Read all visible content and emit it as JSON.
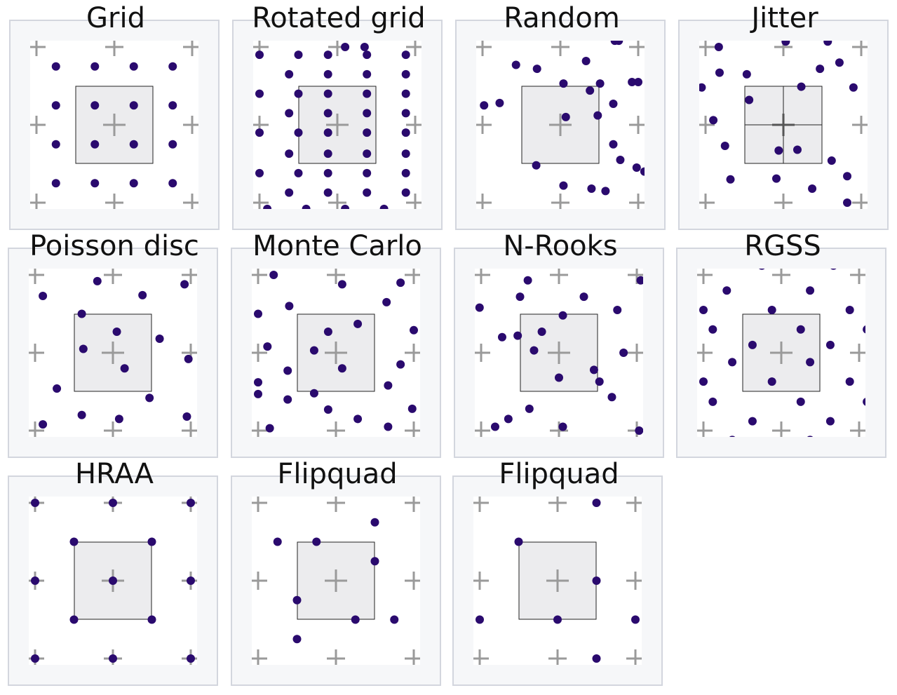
{
  "colors": {
    "sample": "#2a0a6e",
    "cross": "#9a9a9a",
    "pixel_fill": "#ececee",
    "pixel_stroke": "#222222"
  },
  "panels": [
    {
      "title": "Grid",
      "pixel_subdivided": false,
      "samples": [
        [
          -0.75,
          -0.75
        ],
        [
          -0.25,
          -0.75
        ],
        [
          0.25,
          -0.75
        ],
        [
          0.75,
          -0.75
        ],
        [
          -0.75,
          -0.25
        ],
        [
          -0.25,
          -0.25
        ],
        [
          0.25,
          -0.25
        ],
        [
          0.75,
          -0.25
        ],
        [
          -0.75,
          0.25
        ],
        [
          -0.25,
          0.25
        ],
        [
          0.25,
          0.25
        ],
        [
          0.75,
          0.25
        ],
        [
          -0.75,
          0.75
        ],
        [
          -0.25,
          0.75
        ],
        [
          0.25,
          0.75
        ],
        [
          0.75,
          0.75
        ]
      ]
    },
    {
      "title": "Rotated grid",
      "pixel_subdivided": false,
      "samples": [
        [
          0.1,
          -1.0
        ],
        [
          0.35,
          -1.0
        ],
        [
          -1.0,
          -0.9
        ],
        [
          -0.5,
          -0.9
        ],
        [
          -0.12,
          -0.9
        ],
        [
          0.38,
          -0.9
        ],
        [
          0.88,
          -0.9
        ],
        [
          -0.62,
          -0.65
        ],
        [
          -0.12,
          -0.65
        ],
        [
          0.38,
          -0.65
        ],
        [
          0.88,
          -0.65
        ],
        [
          -1.0,
          -0.4
        ],
        [
          -0.5,
          -0.4
        ],
        [
          -0.12,
          -0.4
        ],
        [
          0.38,
          -0.4
        ],
        [
          0.88,
          -0.4
        ],
        [
          -0.62,
          -0.15
        ],
        [
          -0.12,
          -0.15
        ],
        [
          0.38,
          -0.15
        ],
        [
          0.88,
          -0.15
        ],
        [
          -1.0,
          0.1
        ],
        [
          -0.5,
          0.1
        ],
        [
          -0.12,
          0.1
        ],
        [
          0.38,
          0.1
        ],
        [
          0.88,
          0.1
        ],
        [
          -0.62,
          0.37
        ],
        [
          -0.12,
          0.37
        ],
        [
          0.38,
          0.37
        ],
        [
          0.88,
          0.37
        ],
        [
          -1.0,
          0.62
        ],
        [
          -0.5,
          0.62
        ],
        [
          -0.12,
          0.62
        ],
        [
          0.38,
          0.62
        ],
        [
          0.88,
          0.62
        ],
        [
          -0.62,
          0.87
        ],
        [
          -0.12,
          0.87
        ],
        [
          0.38,
          0.87
        ],
        [
          0.88,
          0.87
        ],
        [
          -0.9,
          1.08
        ],
        [
          -0.4,
          1.08
        ],
        [
          0.1,
          1.08
        ],
        [
          0.6,
          1.08
        ]
      ]
    },
    {
      "title": "Random",
      "pixel_subdivided": false,
      "samples": [
        [
          0.7,
          -1.08
        ],
        [
          0.75,
          -1.08
        ],
        [
          -0.57,
          -0.77
        ],
        [
          -0.3,
          -0.72
        ],
        [
          0.33,
          -0.82
        ],
        [
          0.04,
          -0.53
        ],
        [
          0.51,
          -0.53
        ],
        [
          0.38,
          -0.44
        ],
        [
          0.92,
          -0.55
        ],
        [
          1.0,
          -0.55
        ],
        [
          -0.98,
          -0.25
        ],
        [
          -0.78,
          -0.28
        ],
        [
          0.68,
          -0.27
        ],
        [
          0.07,
          -0.1
        ],
        [
          0.48,
          -0.12
        ],
        [
          0.68,
          0.25
        ],
        [
          0.77,
          0.45
        ],
        [
          0.98,
          0.55
        ],
        [
          1.08,
          0.6
        ],
        [
          -0.31,
          0.52
        ],
        [
          0.04,
          0.78
        ],
        [
          0.4,
          0.82
        ],
        [
          0.58,
          0.85
        ]
      ]
    },
    {
      "title": "Jitter",
      "pixel_subdivided": true,
      "samples": [
        [
          -0.83,
          -1.0
        ],
        [
          0.57,
          -1.07
        ],
        [
          0.03,
          -1.07
        ],
        [
          -0.82,
          -0.67
        ],
        [
          -0.47,
          -0.65
        ],
        [
          0.47,
          -0.72
        ],
        [
          0.72,
          -0.8
        ],
        [
          0.9,
          -0.48
        ],
        [
          0.23,
          -0.49
        ],
        [
          -1.05,
          -0.48
        ],
        [
          -0.44,
          -0.32
        ],
        [
          -0.9,
          -0.06
        ],
        [
          -0.75,
          0.27
        ],
        [
          -0.06,
          0.33
        ],
        [
          0.18,
          0.32
        ],
        [
          0.62,
          0.46
        ],
        [
          0.82,
          0.66
        ],
        [
          -0.68,
          0.7
        ],
        [
          -0.09,
          0.69
        ],
        [
          0.37,
          0.82
        ],
        [
          0.82,
          1.0
        ]
      ]
    },
    {
      "title": "Poisson disc",
      "pixel_subdivided": false,
      "samples": [
        [
          -0.9,
          -0.73
        ],
        [
          -0.2,
          -0.92
        ],
        [
          0.38,
          -0.74
        ],
        [
          0.92,
          -0.88
        ],
        [
          -0.4,
          -0.5
        ],
        [
          0.05,
          -0.27
        ],
        [
          0.6,
          -0.18
        ],
        [
          -0.38,
          -0.05
        ],
        [
          0.15,
          0.2
        ],
        [
          0.97,
          0.08
        ],
        [
          -0.72,
          0.46
        ],
        [
          0.47,
          0.58
        ],
        [
          -0.9,
          0.92
        ],
        [
          -0.4,
          0.8
        ],
        [
          0.08,
          0.85
        ],
        [
          0.95,
          0.82
        ]
      ]
    },
    {
      "title": "Monte Carlo",
      "pixel_subdivided": false,
      "samples": [
        [
          -0.8,
          -1.0
        ],
        [
          0.08,
          -0.88
        ],
        [
          0.83,
          -0.9
        ],
        [
          -0.6,
          -0.6
        ],
        [
          0.65,
          -0.65
        ],
        [
          -1.0,
          -0.5
        ],
        [
          -0.1,
          -0.27
        ],
        [
          0.28,
          -0.37
        ],
        [
          1.0,
          -0.29
        ],
        [
          -0.88,
          -0.08
        ],
        [
          -0.28,
          -0.03
        ],
        [
          0.08,
          0.2
        ],
        [
          0.83,
          0.15
        ],
        [
          -0.62,
          0.23
        ],
        [
          -1.0,
          0.38
        ],
        [
          0.67,
          0.42
        ],
        [
          -0.28,
          0.52
        ],
        [
          -0.62,
          0.6
        ],
        [
          0.98,
          0.72
        ],
        [
          -0.1,
          0.73
        ],
        [
          0.28,
          0.85
        ],
        [
          0.67,
          0.95
        ],
        [
          -0.85,
          0.97
        ],
        [
          -1.0,
          0.53
        ]
      ]
    },
    {
      "title": "N-Rooks",
      "pixel_subdivided": false,
      "samples": [
        [
          -0.4,
          -0.93
        ],
        [
          1.05,
          -0.93
        ],
        [
          -0.5,
          -0.72
        ],
        [
          0.32,
          -0.72
        ],
        [
          -1.02,
          -0.58
        ],
        [
          0.75,
          -0.55
        ],
        [
          0.05,
          -0.48
        ],
        [
          -0.22,
          -0.27
        ],
        [
          -0.73,
          -0.2
        ],
        [
          -0.53,
          -0.22
        ],
        [
          -0.32,
          -0.03
        ],
        [
          0.83,
          0.0
        ],
        [
          0.0,
          0.32
        ],
        [
          0.45,
          0.22
        ],
        [
          0.52,
          0.37
        ],
        [
          0.68,
          0.57
        ],
        [
          -0.38,
          0.72
        ],
        [
          -0.65,
          0.85
        ],
        [
          -0.82,
          0.95
        ],
        [
          0.05,
          0.95
        ],
        [
          1.03,
          1.0
        ]
      ]
    },
    {
      "title": "RGSS",
      "pixel_subdivided": false,
      "samples": [
        [
          -0.25,
          -1.12
        ],
        [
          0.67,
          -1.12
        ],
        [
          -0.7,
          -0.8
        ],
        [
          0.37,
          -0.8
        ],
        [
          -1.0,
          -0.55
        ],
        [
          -0.12,
          -0.55
        ],
        [
          0.88,
          -0.55
        ],
        [
          -0.88,
          -0.3
        ],
        [
          0.25,
          -0.3
        ],
        [
          1.1,
          -0.3
        ],
        [
          -0.37,
          -0.1
        ],
        [
          0.63,
          -0.1
        ],
        [
          -0.63,
          0.12
        ],
        [
          0.37,
          0.12
        ],
        [
          -1.0,
          0.37
        ],
        [
          -0.12,
          0.37
        ],
        [
          0.88,
          0.37
        ],
        [
          -0.88,
          0.63
        ],
        [
          0.25,
          0.63
        ],
        [
          1.1,
          0.63
        ],
        [
          -0.37,
          0.88
        ],
        [
          0.63,
          0.88
        ],
        [
          -0.63,
          1.12
        ],
        [
          0.37,
          1.12
        ]
      ]
    },
    {
      "title": "HRAA",
      "pixel_subdivided": false,
      "samples": [
        [
          -1.0,
          -1.0
        ],
        [
          0.0,
          -1.0
        ],
        [
          1.0,
          -1.0
        ],
        [
          -0.5,
          -0.5
        ],
        [
          0.5,
          -0.5
        ],
        [
          -1.0,
          0.0
        ],
        [
          0.0,
          0.0
        ],
        [
          1.0,
          0.0
        ],
        [
          -0.5,
          0.5
        ],
        [
          0.5,
          0.5
        ],
        [
          -1.0,
          1.0
        ],
        [
          0.0,
          1.0
        ],
        [
          1.0,
          1.0
        ]
      ]
    },
    {
      "title": "Flipquad",
      "pixel_subdivided": false,
      "samples": [
        [
          0.5,
          -0.75
        ],
        [
          -0.75,
          -0.5
        ],
        [
          -0.25,
          -0.5
        ],
        [
          0.5,
          -0.25
        ],
        [
          -0.5,
          0.25
        ],
        [
          0.25,
          0.5
        ],
        [
          0.75,
          0.5
        ],
        [
          -0.5,
          0.75
        ]
      ]
    },
    {
      "title": "Flipquad",
      "pixel_subdivided": false,
      "samples": [
        [
          0.5,
          -1.0
        ],
        [
          -0.5,
          -0.5
        ],
        [
          0.5,
          0.0
        ],
        [
          -1.0,
          0.5
        ],
        [
          0.0,
          0.5
        ],
        [
          1.0,
          0.5
        ],
        [
          0.5,
          1.0
        ]
      ]
    }
  ]
}
